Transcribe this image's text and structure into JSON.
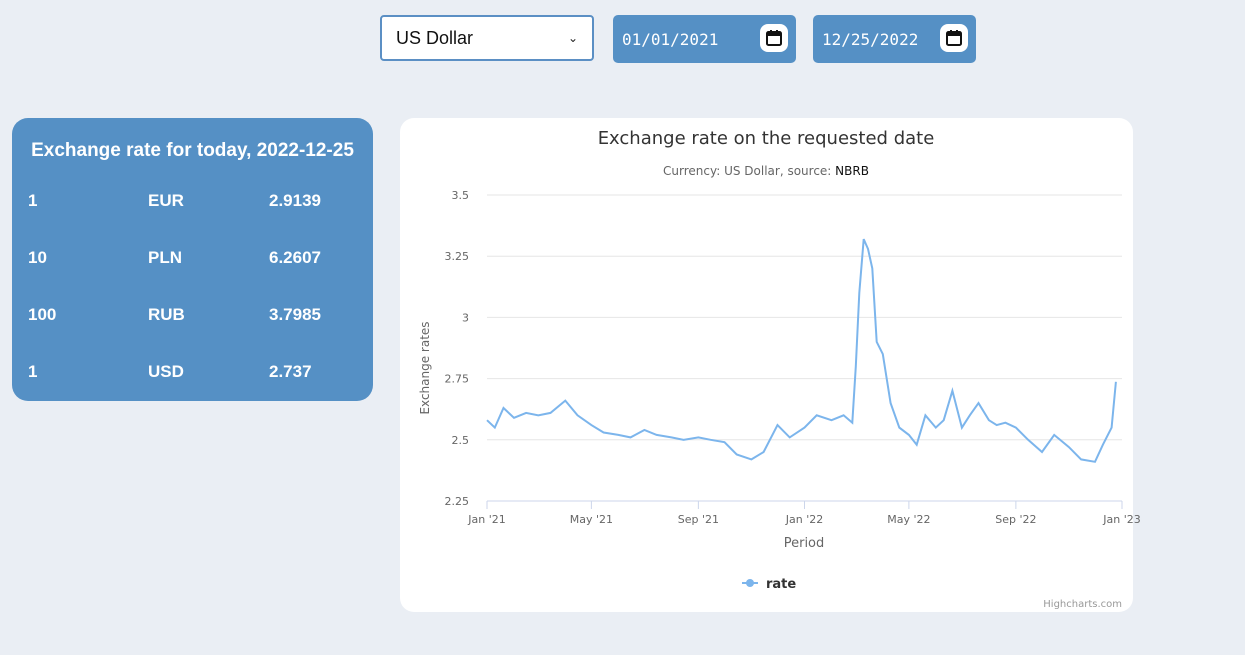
{
  "controls": {
    "currency_select": "US Dollar",
    "date_from": "01/01/2021",
    "date_to": "12/25/2022"
  },
  "rates_panel": {
    "title": "Exchange rate for today, 2022-12-25",
    "rows": [
      {
        "scale": "1",
        "code": "EUR",
        "rate": "2.9139"
      },
      {
        "scale": "10",
        "code": "PLN",
        "rate": "6.2607"
      },
      {
        "scale": "100",
        "code": "RUB",
        "rate": "3.7985"
      },
      {
        "scale": "1",
        "code": "USD",
        "rate": "2.737"
      }
    ]
  },
  "colors": {
    "accent": "#5590c5",
    "series": "#7cb5ec",
    "background": "#eaeef4"
  },
  "chart_data": {
    "type": "line",
    "title": "Exchange rate on the requested date",
    "subtitle_prefix": "Currency: US Dollar, source: ",
    "subtitle_source": "NBRB",
    "xlabel": "Period",
    "ylabel": "Exchange rates",
    "ylim": [
      2.25,
      3.5
    ],
    "yticks": [
      "2.25",
      "2.5",
      "2.75",
      "3",
      "3.25",
      "3.5"
    ],
    "xticks": [
      "Jan '21",
      "May '21",
      "Sep '21",
      "Jan '22",
      "May '22",
      "Sep '22",
      "Jan '23"
    ],
    "legend": "rate",
    "credits": "Highcharts.com",
    "grid": true,
    "series": [
      {
        "name": "rate",
        "x": [
          "2021-01-01",
          "2021-01-10",
          "2021-01-20",
          "2021-02-01",
          "2021-02-15",
          "2021-03-01",
          "2021-03-15",
          "2021-04-01",
          "2021-04-15",
          "2021-05-01",
          "2021-05-15",
          "2021-06-01",
          "2021-06-15",
          "2021-07-01",
          "2021-07-15",
          "2021-08-01",
          "2021-08-15",
          "2021-09-01",
          "2021-09-15",
          "2021-10-01",
          "2021-10-15",
          "2021-11-01",
          "2021-11-15",
          "2021-12-01",
          "2021-12-15",
          "2022-01-01",
          "2022-01-15",
          "2022-02-01",
          "2022-02-15",
          "2022-02-25",
          "2022-03-01",
          "2022-03-05",
          "2022-03-10",
          "2022-03-15",
          "2022-03-20",
          "2022-03-25",
          "2022-04-01",
          "2022-04-10",
          "2022-04-20",
          "2022-05-01",
          "2022-05-10",
          "2022-05-20",
          "2022-06-01",
          "2022-06-10",
          "2022-06-20",
          "2022-07-01",
          "2022-07-10",
          "2022-07-20",
          "2022-08-01",
          "2022-08-10",
          "2022-08-20",
          "2022-09-01",
          "2022-09-15",
          "2022-10-01",
          "2022-10-15",
          "2022-11-01",
          "2022-11-15",
          "2022-12-01",
          "2022-12-10",
          "2022-12-20",
          "2022-12-25"
        ],
        "values": [
          2.58,
          2.55,
          2.63,
          2.59,
          2.61,
          2.6,
          2.61,
          2.66,
          2.6,
          2.56,
          2.53,
          2.52,
          2.51,
          2.54,
          2.52,
          2.51,
          2.5,
          2.51,
          2.5,
          2.49,
          2.44,
          2.42,
          2.45,
          2.56,
          2.51,
          2.55,
          2.6,
          2.58,
          2.6,
          2.57,
          2.8,
          3.1,
          3.32,
          3.28,
          3.2,
          2.9,
          2.85,
          2.65,
          2.55,
          2.52,
          2.48,
          2.6,
          2.55,
          2.58,
          2.7,
          2.55,
          2.6,
          2.65,
          2.58,
          2.56,
          2.57,
          2.55,
          2.5,
          2.45,
          2.52,
          2.47,
          2.42,
          2.41,
          2.48,
          2.55,
          2.737
        ]
      }
    ]
  }
}
